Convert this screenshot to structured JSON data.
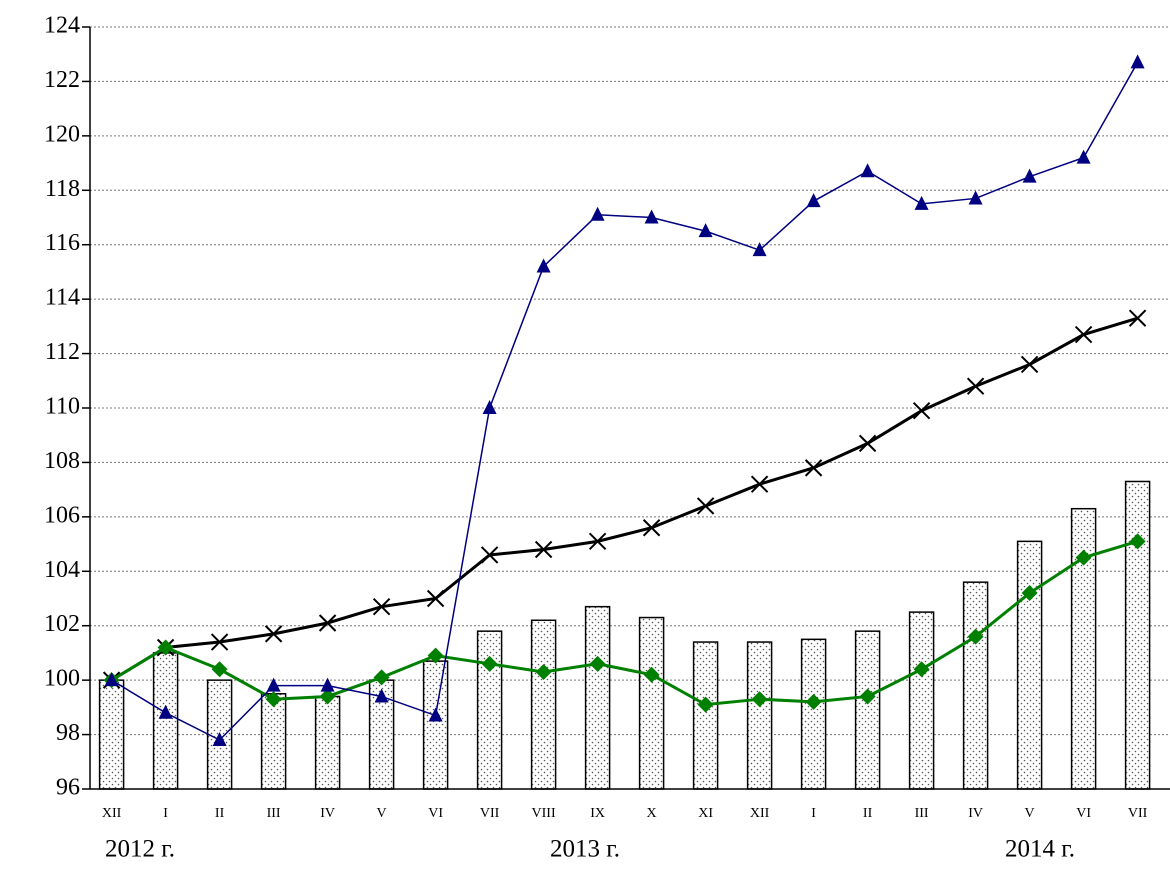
{
  "chart_data": {
    "type": "combo",
    "categories": [
      "XII",
      "I",
      "II",
      "III",
      "IV",
      "V",
      "VI",
      "VII",
      "VIII",
      "IX",
      "X",
      "XI",
      "XII",
      "I",
      "II",
      "III",
      "IV",
      "V",
      "VI",
      "VII"
    ],
    "group_labels": [
      "2012 г.",
      "2013 г.",
      "2014 г."
    ],
    "ylim": [
      96,
      124
    ],
    "yticks": [
      96,
      98,
      100,
      102,
      104,
      106,
      108,
      110,
      112,
      114,
      116,
      118,
      120,
      122,
      124
    ],
    "grid": true,
    "series": [
      {
        "kind": "bar",
        "color": "#000000",
        "values": [
          100,
          101.0,
          100,
          99.5,
          99.4,
          100,
          100.7,
          101.8,
          102.2,
          102.7,
          102.3,
          101.4,
          101.4,
          101.5,
          101.8,
          102.5,
          103.6,
          105.1,
          106.3,
          107.3
        ]
      },
      {
        "kind": "line",
        "marker": "cross",
        "color": "#000000",
        "width": 3,
        "values": [
          100,
          101.2,
          101.4,
          101.7,
          102.1,
          102.7,
          103.0,
          104.6,
          104.8,
          105.1,
          105.6,
          106.4,
          107.2,
          107.8,
          108.7,
          109.9,
          110.8,
          111.6,
          112.7,
          113.3
        ]
      },
      {
        "kind": "line",
        "marker": "diamond",
        "color": "#008000",
        "width": 3,
        "values": [
          100,
          101.2,
          100.4,
          99.3,
          99.4,
          100.1,
          100.9,
          100.6,
          100.3,
          100.6,
          100.2,
          99.1,
          99.3,
          99.2,
          99.4,
          100.4,
          101.6,
          103.2,
          104.5,
          105.1
        ]
      },
      {
        "kind": "line",
        "marker": "triangle",
        "color": "#000080",
        "width": 1.5,
        "values": [
          100,
          98.8,
          97.8,
          99.8,
          99.8,
          99.4,
          98.7,
          110.0,
          115.2,
          117.1,
          117.0,
          116.5,
          115.8,
          117.6,
          118.7,
          117.5,
          117.7,
          118.5,
          119.2,
          122.7
        ]
      }
    ]
  }
}
